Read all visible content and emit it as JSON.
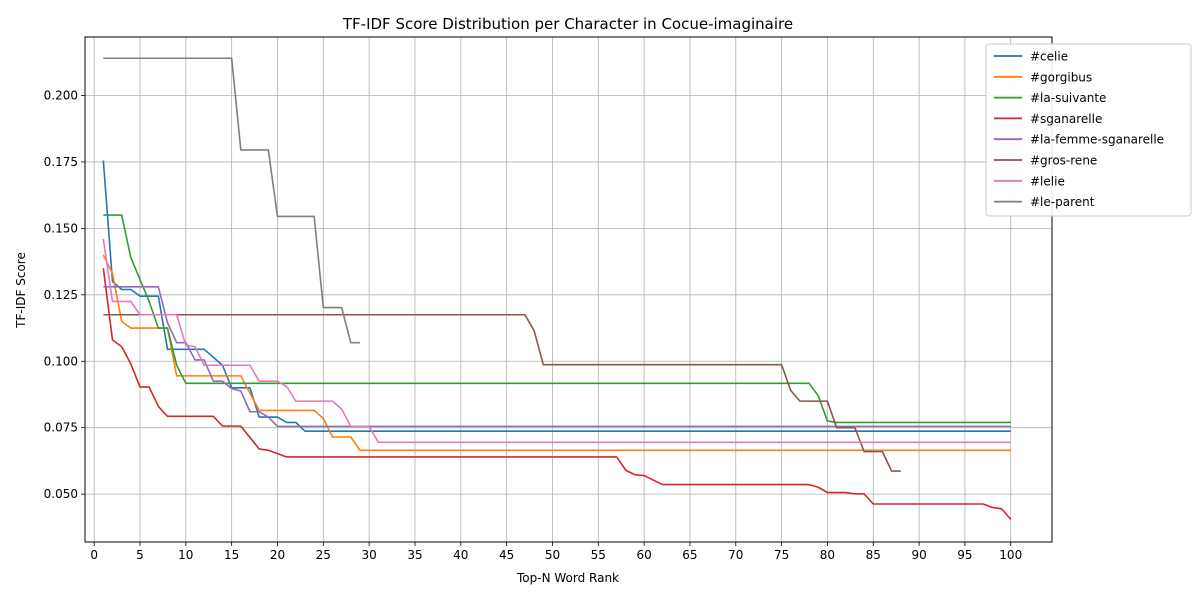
{
  "chart_data": {
    "type": "line",
    "title": "TF-IDF Score Distribution per Character in Cocue-imaginaire",
    "xlabel": "Top-N Word Rank",
    "ylabel": "TF-IDF Score",
    "xlim": [
      -1,
      104.5
    ],
    "ylim": [
      0.032,
      0.222
    ],
    "xticks": [
      0,
      5,
      10,
      15,
      20,
      25,
      30,
      35,
      40,
      45,
      50,
      55,
      60,
      65,
      70,
      75,
      80,
      85,
      90,
      95,
      100
    ],
    "yticks": [
      0.05,
      0.075,
      0.1,
      0.125,
      0.15,
      0.175,
      0.2
    ],
    "ytick_labels": [
      "0.050",
      "0.075",
      "0.100",
      "0.125",
      "0.150",
      "0.175",
      "0.200"
    ],
    "grid": true,
    "legend": "top-right, outside",
    "series": [
      {
        "name": "#celie",
        "color": "#1f77b4",
        "points": [
          [
            1,
            0.1755
          ],
          [
            2,
            0.13
          ],
          [
            3,
            0.127
          ],
          [
            4,
            0.127
          ],
          [
            5,
            0.1245
          ],
          [
            7,
            0.1245
          ],
          [
            8,
            0.1045
          ],
          [
            12,
            0.1045
          ],
          [
            14,
            0.0985
          ],
          [
            15,
            0.09
          ],
          [
            17,
            0.09
          ],
          [
            18,
            0.079
          ],
          [
            20,
            0.079
          ],
          [
            21,
            0.077
          ],
          [
            22,
            0.077
          ],
          [
            23,
            0.0737
          ],
          [
            100,
            0.0737
          ]
        ]
      },
      {
        "name": "#gorgibus",
        "color": "#ff7f0e",
        "points": [
          [
            1,
            0.14
          ],
          [
            2,
            0.133
          ],
          [
            3,
            0.115
          ],
          [
            4,
            0.1125
          ],
          [
            8,
            0.1125
          ],
          [
            9,
            0.0945
          ],
          [
            16,
            0.0945
          ],
          [
            18,
            0.0815
          ],
          [
            24,
            0.0815
          ],
          [
            25,
            0.0785
          ],
          [
            26,
            0.0715
          ],
          [
            28,
            0.0715
          ],
          [
            29,
            0.0665
          ],
          [
            100,
            0.0665
          ]
        ]
      },
      {
        "name": "#la-suivante",
        "color": "#2ca02c",
        "points": [
          [
            1,
            0.155
          ],
          [
            3,
            0.155
          ],
          [
            4,
            0.139
          ],
          [
            6,
            0.1225
          ],
          [
            7,
            0.1125
          ],
          [
            8,
            0.1125
          ],
          [
            9,
            0.0985
          ],
          [
            10,
            0.0917
          ],
          [
            78,
            0.0917
          ],
          [
            79,
            0.087
          ],
          [
            80,
            0.0775
          ],
          [
            81,
            0.077
          ],
          [
            100,
            0.077
          ]
        ]
      },
      {
        "name": "#sganarelle",
        "color": "#d62728",
        "points": [
          [
            1,
            0.135
          ],
          [
            2,
            0.108
          ],
          [
            3,
            0.1055
          ],
          [
            4,
            0.099
          ],
          [
            5,
            0.0903
          ],
          [
            6,
            0.0903
          ],
          [
            7,
            0.083
          ],
          [
            8,
            0.0793
          ],
          [
            13,
            0.0793
          ],
          [
            14,
            0.0756
          ],
          [
            16,
            0.0756
          ],
          [
            18,
            0.067
          ],
          [
            19,
            0.0665
          ],
          [
            21,
            0.064
          ],
          [
            57,
            0.064
          ],
          [
            58,
            0.059
          ],
          [
            59,
            0.0573
          ],
          [
            60,
            0.057
          ],
          [
            62,
            0.0536
          ],
          [
            78,
            0.0536
          ],
          [
            79,
            0.0526
          ],
          [
            80,
            0.0506
          ],
          [
            82,
            0.0506
          ],
          [
            83,
            0.0501
          ],
          [
            84,
            0.0501
          ],
          [
            85,
            0.0463
          ],
          [
            97,
            0.0463
          ],
          [
            98,
            0.045
          ],
          [
            99,
            0.0445
          ],
          [
            100,
            0.0405
          ]
        ]
      },
      {
        "name": "#la-femme-sganarelle",
        "color": "#9467bd",
        "points": [
          [
            1,
            0.128
          ],
          [
            7,
            0.128
          ],
          [
            8,
            0.1145
          ],
          [
            9,
            0.107
          ],
          [
            10,
            0.107
          ],
          [
            11,
            0.1005
          ],
          [
            12,
            0.1005
          ],
          [
            13,
            0.0925
          ],
          [
            14,
            0.0925
          ],
          [
            15,
            0.0897
          ],
          [
            16,
            0.0888
          ],
          [
            17,
            0.081
          ],
          [
            18,
            0.081
          ],
          [
            19,
            0.079
          ],
          [
            20,
            0.0755
          ],
          [
            100,
            0.0755
          ]
        ]
      },
      {
        "name": "#gros-rene",
        "color": "#8c564b",
        "points": [
          [
            1,
            0.1175
          ],
          [
            47,
            0.1175
          ],
          [
            48,
            0.1115
          ],
          [
            49,
            0.0987
          ],
          [
            75,
            0.0987
          ],
          [
            76,
            0.089
          ],
          [
            77,
            0.085
          ],
          [
            80,
            0.085
          ],
          [
            81,
            0.075
          ],
          [
            83,
            0.075
          ],
          [
            84,
            0.066
          ],
          [
            86,
            0.066
          ],
          [
            87,
            0.0587
          ],
          [
            88,
            0.0587
          ]
        ]
      },
      {
        "name": "#lelie",
        "color": "#e377c2",
        "points": [
          [
            1,
            0.146
          ],
          [
            2,
            0.1225
          ],
          [
            4,
            0.1225
          ],
          [
            5,
            0.1175
          ],
          [
            9,
            0.1175
          ],
          [
            10,
            0.106
          ],
          [
            11,
            0.1055
          ],
          [
            12,
            0.0985
          ],
          [
            17,
            0.0985
          ],
          [
            18,
            0.0925
          ],
          [
            20,
            0.0925
          ],
          [
            21,
            0.0905
          ],
          [
            22,
            0.085
          ],
          [
            26,
            0.085
          ],
          [
            27,
            0.082
          ],
          [
            28,
            0.0755
          ],
          [
            30,
            0.0755
          ],
          [
            31,
            0.0695
          ],
          [
            100,
            0.0695
          ]
        ]
      },
      {
        "name": "#le-parent",
        "color": "#7f7f7f",
        "points": [
          [
            1,
            0.214
          ],
          [
            15,
            0.214
          ],
          [
            16,
            0.1795
          ],
          [
            19,
            0.1795
          ],
          [
            20,
            0.1545
          ],
          [
            24,
            0.1545
          ],
          [
            25,
            0.1202
          ],
          [
            27,
            0.1202
          ],
          [
            28,
            0.107
          ],
          [
            29,
            0.107
          ]
        ]
      }
    ]
  }
}
